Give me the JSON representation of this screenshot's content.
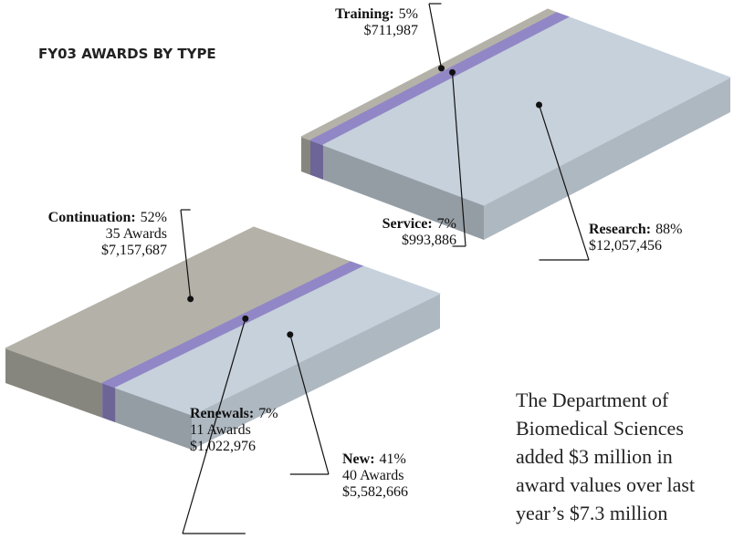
{
  "chart_data": [
    {
      "type": "slab",
      "title": "FY03 AWARDS BY TYPE",
      "categories": [
        "Training",
        "Service",
        "Research"
      ],
      "values": [
        5,
        7,
        88
      ],
      "value_labels": [
        "5%",
        "7%",
        "88%"
      ],
      "amounts": [
        "$711,987",
        "$993,886",
        "$12,057,456"
      ],
      "colors": [
        "#b4b2a8",
        "#9187c6",
        "#c6d1db"
      ]
    },
    {
      "type": "slab",
      "categories": [
        "Continuation",
        "Renewals",
        "New"
      ],
      "values": [
        52,
        7,
        41
      ],
      "value_labels": [
        "52%",
        "7%",
        "41%"
      ],
      "awards": [
        "35 Awards",
        "11 Awards",
        "40 Awards"
      ],
      "amounts": [
        "$7,157,687",
        "$1,022,976",
        "$5,582,666"
      ],
      "colors": [
        "#b4b2a8",
        "#9187c6",
        "#c6d1db"
      ]
    }
  ],
  "body_text": [
    "The Department of",
    "Biomedical Sciences",
    "added $3 million in",
    "award values over last",
    "year’s $7.3 million"
  ]
}
